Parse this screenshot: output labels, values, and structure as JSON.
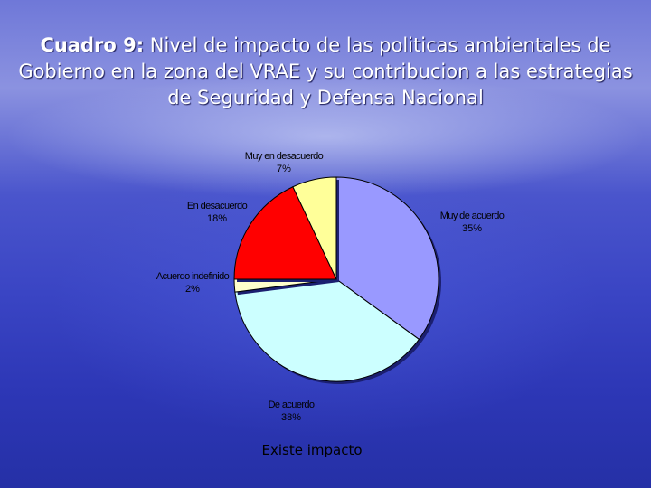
{
  "slide": {
    "title_prefix": "Cuadro 9:",
    "title_text": " Nivel de impacto de las politicas ambientales de Gobierno en la zona del VRAE y su contribucion a las estrategias de Seguridad y Defensa Nacional",
    "caption": "Existe impacto"
  },
  "chart_data": {
    "type": "pie",
    "title": "",
    "slices": [
      {
        "label": "Muy de acuerdo",
        "percent_label": "35%",
        "value": 35,
        "color": "#9999ff"
      },
      {
        "label": "De acuerdo",
        "percent_label": "38%",
        "value": 38,
        "color": "#ccffff"
      },
      {
        "label": "Acuerdo indefinido",
        "percent_label": "2%",
        "value": 2,
        "color": "#ffffcc"
      },
      {
        "label": "En desacuerdo",
        "percent_label": "18%",
        "value": 18,
        "color": "#ff0000"
      },
      {
        "label": "Muy en desacuerdo",
        "percent_label": "7%",
        "value": 7,
        "color": "#ffff99"
      }
    ],
    "legend": "none"
  }
}
